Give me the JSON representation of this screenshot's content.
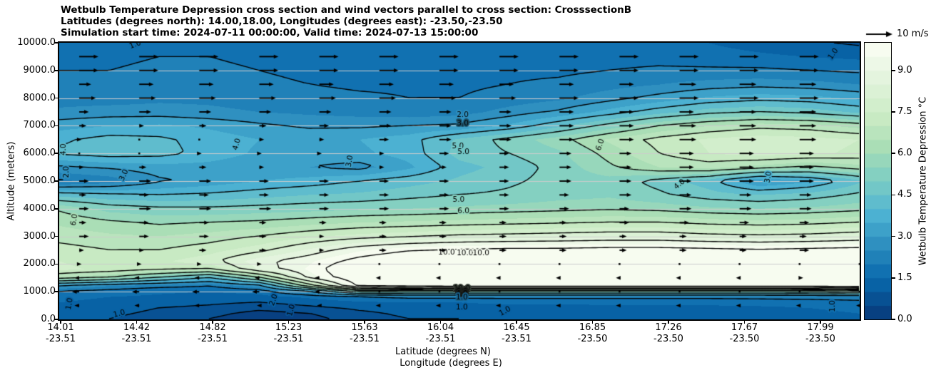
{
  "chart_data": {
    "type": "heatmap",
    "subtype": "filled-contour-cross-section-with-wind-quiver",
    "title_lines": [
      "Wetbulb Temperature Depression cross section and wind vectors parallel to cross section: CrosssectionB",
      "Latitudes (degrees north): 14.00,18.00, Longitudes (degrees east): -23.50,-23.50",
      "Simulation start time: 2024-07-11 00:00:00, Valid time: 2024-07-13 15:00:00"
    ],
    "xlabel_lines": [
      "Latitude (degrees N)",
      "Longitude (degrees E)"
    ],
    "ylabel": "Altitude (meters)",
    "quiver_key": "10 m/s",
    "units": "degC",
    "lat_range": [
      14.0,
      18.0
    ],
    "alt_range_m": [
      0,
      10000
    ],
    "x_ticks": [
      {
        "lat": "14.01",
        "lon": "-23.51"
      },
      {
        "lat": "14.42",
        "lon": "-23.51"
      },
      {
        "lat": "14.82",
        "lon": "-23.51"
      },
      {
        "lat": "15.23",
        "lon": "-23.51"
      },
      {
        "lat": "15.63",
        "lon": "-23.51"
      },
      {
        "lat": "16.04",
        "lon": "-23.51"
      },
      {
        "lat": "16.45",
        "lon": "-23.51"
      },
      {
        "lat": "16.85",
        "lon": "-23.50"
      },
      {
        "lat": "17.26",
        "lon": "-23.50"
      },
      {
        "lat": "17.67",
        "lon": "-23.50"
      },
      {
        "lat": "17.99",
        "lon": "-23.50"
      }
    ],
    "y_ticks": [
      "10000.0",
      "9000.0",
      "8000.0",
      "7000.0",
      "6000.0",
      "5000.0",
      "4000.0",
      "3000.0",
      "2000.0",
      "1000.0",
      "0.0"
    ],
    "colorbar": {
      "label": "Wetbulb Temperature Depression °C",
      "ticks": [
        "0.0",
        "1.5",
        "3.0",
        "4.5",
        "6.0",
        "7.5",
        "9.0"
      ],
      "tick_values": [
        0,
        1.5,
        3,
        4.5,
        6,
        7.5,
        9
      ],
      "vmin": 0,
      "vmax": 10,
      "n_bins": 20,
      "palette_anchors": [
        "#084081",
        "#0868ac",
        "#2b8cbe",
        "#4eb3d3",
        "#7bccc4",
        "#a8ddb5",
        "#ccebc5",
        "#e0f3db",
        "#f7fcf0"
      ]
    },
    "gridline_color": "#cccccc",
    "contour_color": "#000000",
    "arrow_color": "#000000",
    "contour_levels": [
      0.5,
      1,
      2,
      3,
      4,
      5,
      6,
      7,
      8,
      9,
      10
    ],
    "grid": {
      "lats": [
        14.0,
        14.25,
        14.5,
        14.75,
        15.0,
        15.25,
        15.5,
        15.75,
        16.0,
        16.25,
        16.5,
        16.75,
        17.0,
        17.25,
        17.5,
        17.75,
        18.0
      ],
      "alts_m": [
        0,
        200,
        400,
        600,
        800,
        1000,
        1200,
        1500,
        1800,
        2100,
        2500,
        3000,
        3500,
        4000,
        4500,
        5000,
        5500,
        6000,
        6500,
        7000,
        7500,
        8000,
        8500,
        9000,
        9500,
        10000
      ],
      "values": [
        [
          1.2,
          1.0,
          0.8,
          0.5,
          0.1,
          0.3,
          0.8,
          1.0,
          1.0,
          1.1,
          1.1,
          1.1,
          1.2,
          1.2,
          1.2,
          1.3,
          1.4
        ],
        [
          1.2,
          1.1,
          0.9,
          0.7,
          0.3,
          0.5,
          0.9,
          1.1,
          1.1,
          1.2,
          1.2,
          1.2,
          1.3,
          1.3,
          1.3,
          1.4,
          1.5
        ],
        [
          1.3,
          1.2,
          1.0,
          0.9,
          0.7,
          0.9,
          1.1,
          1.2,
          1.3,
          1.3,
          1.3,
          1.4,
          1.4,
          1.4,
          1.4,
          1.5,
          1.6
        ],
        [
          1.5,
          1.3,
          1.2,
          1.1,
          1.0,
          1.2,
          1.4,
          1.5,
          1.5,
          1.6,
          1.6,
          1.6,
          1.6,
          1.6,
          1.7,
          1.7,
          1.8
        ],
        [
          1.7,
          1.5,
          1.4,
          1.3,
          1.3,
          1.6,
          2.0,
          2.2,
          2.2,
          2.2,
          2.2,
          2.2,
          2.2,
          2.2,
          2.2,
          2.3,
          2.4
        ],
        [
          2.0,
          1.8,
          1.6,
          1.5,
          1.7,
          3.0,
          5.5,
          5.5,
          5.5,
          5.5,
          5.5,
          5.5,
          5.5,
          5.5,
          5.5,
          5.6,
          5.8
        ],
        [
          3.0,
          2.5,
          2.2,
          2.0,
          2.8,
          6.5,
          10.2,
          10.6,
          10.8,
          10.8,
          10.8,
          10.8,
          10.8,
          10.8,
          10.8,
          10.8,
          11.0
        ],
        [
          6.5,
          6.0,
          5.0,
          4.0,
          6.0,
          9.2,
          10.8,
          11.3,
          11.4,
          11.4,
          11.4,
          11.4,
          11.4,
          11.3,
          11.3,
          11.3,
          11.5
        ],
        [
          7.6,
          7.4,
          7.2,
          7.0,
          8.6,
          9.6,
          10.9,
          11.4,
          11.5,
          11.5,
          11.5,
          11.5,
          11.5,
          11.4,
          11.3,
          11.4,
          11.5
        ],
        [
          7.5,
          7.3,
          7.4,
          7.8,
          8.8,
          9.4,
          10.3,
          10.9,
          11.0,
          11.0,
          11.0,
          11.0,
          11.0,
          10.9,
          10.8,
          10.9,
          11.0
        ],
        [
          7.2,
          7.0,
          7.0,
          7.3,
          7.8,
          8.6,
          9.4,
          9.9,
          10.1,
          10.2,
          10.2,
          10.3,
          10.3,
          10.2,
          10.1,
          10.2,
          10.3
        ],
        [
          6.8,
          6.6,
          6.5,
          6.7,
          7.0,
          7.4,
          7.7,
          7.9,
          8.1,
          8.2,
          8.3,
          8.4,
          8.4,
          8.2,
          8.1,
          8.2,
          8.4
        ],
        [
          6.4,
          6.1,
          5.9,
          6.0,
          6.1,
          6.3,
          6.5,
          6.6,
          6.7,
          6.8,
          6.9,
          7.0,
          7.0,
          6.8,
          6.7,
          6.8,
          7.0
        ],
        [
          5.9,
          5.3,
          5.1,
          5.1,
          5.2,
          5.3,
          5.4,
          5.5,
          5.6,
          5.7,
          5.8,
          5.9,
          5.8,
          5.6,
          5.5,
          5.6,
          5.8
        ],
        [
          4.3,
          4.1,
          4.0,
          4.1,
          4.3,
          4.5,
          4.6,
          4.8,
          5.0,
          5.1,
          5.3,
          5.4,
          5.1,
          4.7,
          4.5,
          4.7,
          5.1
        ],
        [
          1.9,
          2.2,
          2.9,
          3.2,
          3.5,
          3.7,
          4.0,
          4.3,
          4.6,
          4.9,
          5.2,
          5.3,
          4.8,
          4.2,
          2.9,
          3.4,
          4.4
        ],
        [
          2.9,
          3.1,
          3.3,
          3.3,
          3.1,
          3.0,
          2.8,
          3.4,
          4.3,
          4.7,
          5.2,
          5.9,
          6.5,
          6.7,
          6.3,
          5.9,
          6.3
        ],
        [
          4.1,
          4.3,
          4.2,
          3.8,
          3.4,
          3.3,
          3.4,
          3.7,
          4.7,
          5.0,
          5.4,
          6.2,
          7.0,
          7.5,
          7.7,
          7.6,
          7.4
        ],
        [
          3.9,
          4.2,
          4.1,
          3.8,
          3.5,
          3.4,
          3.5,
          3.8,
          4.6,
          5.2,
          5.8,
          6.6,
          7.2,
          7.6,
          7.8,
          7.7,
          7.5
        ],
        [
          3.3,
          3.5,
          3.6,
          3.4,
          3.1,
          2.9,
          2.9,
          3.0,
          3.1,
          3.6,
          4.4,
          5.2,
          6.0,
          6.5,
          6.8,
          6.7,
          6.3
        ],
        [
          2.6,
          2.7,
          2.7,
          2.6,
          2.5,
          2.4,
          2.3,
          2.2,
          2.3,
          2.7,
          3.1,
          3.7,
          4.3,
          4.8,
          5.0,
          4.8,
          4.4
        ],
        [
          2.3,
          2.3,
          2.4,
          2.4,
          2.3,
          2.2,
          2.1,
          2.0,
          2.0,
          2.2,
          2.4,
          2.8,
          3.2,
          3.6,
          3.8,
          3.7,
          3.4
        ],
        [
          2.1,
          2.1,
          2.2,
          2.2,
          2.1,
          2.0,
          1.9,
          1.9,
          1.9,
          2.0,
          2.1,
          2.3,
          2.5,
          2.7,
          2.8,
          2.7,
          2.5
        ],
        [
          2.0,
          2.0,
          2.1,
          2.1,
          2.0,
          1.9,
          1.9,
          1.8,
          1.8,
          1.9,
          1.9,
          2.0,
          2.1,
          2.1,
          2.1,
          2.0,
          1.9
        ],
        [
          1.9,
          1.9,
          2.0,
          2.0,
          1.9,
          1.9,
          1.8,
          1.8,
          1.8,
          1.8,
          1.8,
          1.8,
          1.8,
          1.7,
          1.6,
          1.5,
          1.4
        ],
        [
          1.8,
          1.8,
          1.9,
          1.9,
          1.9,
          1.8,
          1.8,
          1.8,
          1.8,
          1.8,
          1.7,
          1.7,
          1.6,
          1.5,
          1.3,
          1.1,
          0.9
        ]
      ]
    },
    "wind": {
      "lats": [
        14.1,
        14.4,
        14.7,
        15.0,
        15.3,
        15.6,
        15.9,
        16.2,
        16.5,
        16.8,
        17.1,
        17.4,
        17.7,
        18.0
      ],
      "alts_m": [
        9500,
        9000,
        8500,
        8000,
        7500,
        7000,
        6500,
        6000,
        5500,
        5000,
        4500,
        4000,
        3500,
        3000,
        2500,
        2000,
        1500,
        1000,
        500
      ],
      "u_ms": [
        [
          8,
          8,
          8,
          8,
          8,
          8,
          8,
          8,
          8,
          8,
          8,
          8,
          8,
          8
        ],
        [
          8,
          8,
          8,
          8,
          8,
          8,
          8,
          8,
          8,
          8,
          8,
          8,
          8,
          8
        ],
        [
          5,
          6,
          6,
          6,
          6,
          6,
          6,
          6,
          6,
          6,
          7,
          7,
          7,
          7
        ],
        [
          7,
          7,
          7,
          7,
          7,
          7,
          7,
          7,
          8,
          8,
          8,
          8,
          8,
          8
        ],
        [
          4,
          5,
          5,
          5,
          5,
          5,
          5,
          5,
          6,
          6,
          6,
          7,
          7,
          7
        ],
        [
          3,
          2,
          3,
          3,
          4,
          5,
          5,
          5,
          6,
          6,
          7,
          7,
          7,
          7
        ],
        [
          1,
          0.5,
          0.5,
          2,
          2,
          4,
          5,
          5,
          6,
          6,
          7,
          7,
          7,
          7
        ],
        [
          0.5,
          0.5,
          1,
          1,
          1,
          2,
          4,
          4,
          5,
          5,
          6,
          6,
          6,
          6
        ],
        [
          2,
          3,
          3,
          2,
          0.5,
          2,
          3,
          4,
          5,
          5,
          6,
          6,
          6,
          6
        ],
        [
          4,
          5,
          5,
          4,
          4,
          4,
          4,
          4,
          5,
          5,
          5,
          6,
          6,
          6
        ],
        [
          3,
          4,
          4,
          4,
          4,
          4,
          4,
          4,
          4,
          5,
          5,
          5,
          5,
          5
        ],
        [
          4,
          5,
          5,
          5,
          4,
          4,
          4,
          4,
          4,
          4,
          5,
          5,
          5,
          5
        ],
        [
          3,
          4,
          4,
          3,
          3,
          3,
          3,
          3,
          3,
          4,
          4,
          4,
          4,
          4
        ],
        [
          4,
          4,
          4,
          3,
          2,
          3,
          3,
          3,
          3,
          3,
          3,
          3,
          3,
          3
        ],
        [
          2,
          2,
          3,
          3,
          2,
          3,
          3,
          3,
          3,
          3,
          3,
          3,
          4,
          4
        ],
        [
          1,
          1,
          1,
          1,
          0.5,
          0.5,
          0.5,
          0.5,
          0.5,
          0.5,
          0.5,
          0.5,
          0.5,
          0.5
        ],
        [
          -2,
          -2,
          -2,
          -2,
          -2,
          -1.5,
          -1.5,
          -1.5,
          -1.5,
          -1.5,
          -1.5,
          -1.5,
          1.5,
          2
        ],
        [
          -3,
          -3,
          -3,
          -3,
          -2,
          0,
          0,
          0,
          0,
          0,
          0,
          0,
          0,
          0
        ],
        [
          -2,
          -2,
          -2,
          -1,
          -1,
          -1.5,
          -1.5,
          -1.5,
          -1.5,
          -1.5,
          -1.5,
          -1.5,
          -1.5,
          -1.5
        ]
      ]
    },
    "contour_labels": [
      {
        "text": "1.0",
        "fx": 0.095,
        "alt_m": 9930,
        "rot": -20
      },
      {
        "text": "1.0",
        "fx": 0.967,
        "alt_m": 9590,
        "rot": -55
      },
      {
        "text": "2.0",
        "fx": 0.504,
        "alt_m": 7380,
        "rot": 0
      },
      {
        "text": "3.0",
        "fx": 0.504,
        "alt_m": 7080,
        "rot": 0
      },
      {
        "text": "5.0",
        "fx": 0.498,
        "alt_m": 6260,
        "rot": 0
      },
      {
        "text": "5.0",
        "fx": 0.505,
        "alt_m": 6050,
        "rot": 0
      },
      {
        "text": "3.0",
        "fx": 0.363,
        "alt_m": 5720,
        "rot": -80
      },
      {
        "text": "6.0",
        "fx": 0.676,
        "alt_m": 6310,
        "rot": -70
      },
      {
        "text": "4.0",
        "fx": 0.222,
        "alt_m": 6330,
        "rot": -75
      },
      {
        "text": "4.0",
        "fx": 0.006,
        "alt_m": 6140,
        "rot": -90
      },
      {
        "text": "2.0",
        "fx": 0.009,
        "alt_m": 5330,
        "rot": -90
      },
      {
        "text": "3.0",
        "fx": 0.081,
        "alt_m": 5210,
        "rot": -65
      },
      {
        "text": "4.0",
        "fx": 0.775,
        "alt_m": 4880,
        "rot": -40
      },
      {
        "text": "3.0",
        "fx": 0.886,
        "alt_m": 5140,
        "rot": -80
      },
      {
        "text": "5.0",
        "fx": 0.499,
        "alt_m": 4330,
        "rot": 0
      },
      {
        "text": "6.0",
        "fx": 0.505,
        "alt_m": 3920,
        "rot": 0
      },
      {
        "text": "6.0",
        "fx": 0.019,
        "alt_m": 3600,
        "rot": -80
      },
      {
        "text": "10.0",
        "fx": 0.484,
        "alt_m": 2410,
        "rot": 0
      },
      {
        "text": "10.0",
        "fx": 0.507,
        "alt_m": 2390,
        "rot": 0
      },
      {
        "text": "10.0",
        "fx": 0.527,
        "alt_m": 2380,
        "rot": 0
      },
      {
        "text": "10.0",
        "fx": 0.503,
        "alt_m": 1100,
        "rot": 0
      },
      {
        "text": "6.0",
        "fx": 0.503,
        "alt_m": 1010,
        "rot": 0
      },
      {
        "text": "4.0",
        "fx": 0.503,
        "alt_m": 930,
        "rot": 0
      },
      {
        "text": "1.0",
        "fx": 0.503,
        "alt_m": 790,
        "rot": 0
      },
      {
        "text": "1.0",
        "fx": 0.503,
        "alt_m": 420,
        "rot": 0
      },
      {
        "text": "1.0",
        "fx": 0.557,
        "alt_m": 290,
        "rot": -30
      },
      {
        "text": "2.0",
        "fx": 0.268,
        "alt_m": 700,
        "rot": -70
      },
      {
        "text": "1.0",
        "fx": 0.29,
        "alt_m": 330,
        "rot": -75
      },
      {
        "text": "1.0",
        "fx": 0.075,
        "alt_m": 200,
        "rot": -15
      },
      {
        "text": "1.0",
        "fx": 0.013,
        "alt_m": 560,
        "rot": -80
      },
      {
        "text": "1.0",
        "fx": 0.966,
        "alt_m": 480,
        "rot": -90
      }
    ]
  }
}
